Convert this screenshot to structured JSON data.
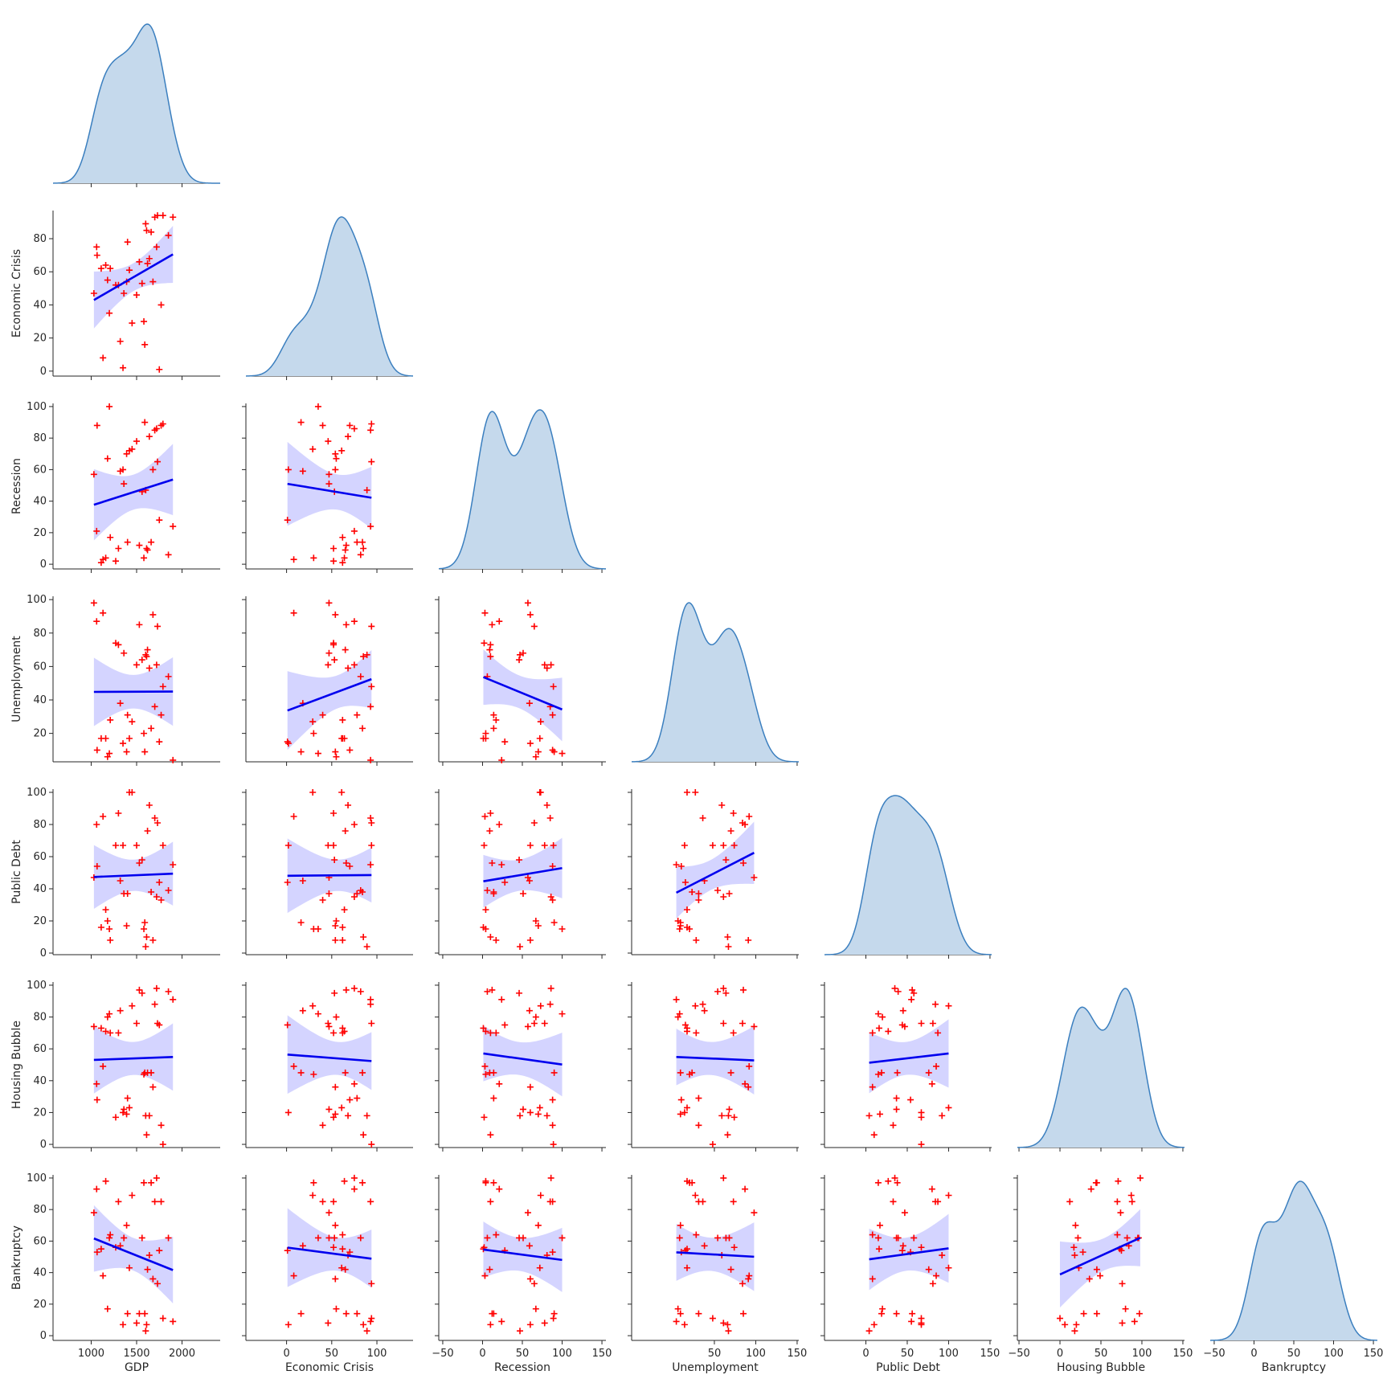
{
  "chart_data": {
    "type": "pairplot",
    "variables": [
      "GDP",
      "Economic Crisis",
      "Recession",
      "Unemployment",
      "Public Debt",
      "Housing Bubble",
      "Bankruptcy"
    ],
    "diag_kind": "kde",
    "lower_kind": "regression scatter with 95% confidence band",
    "corner": true,
    "colors": {
      "kde_fill": "#c5d9ec",
      "kde_line": "#3b7fbf",
      "points": "#ff0000",
      "reg_line": "#0000ee",
      "band": "#d4d4ff"
    },
    "axes": {
      "GDP": {
        "lim": [
          580,
          2420
        ],
        "ticks": [
          1000,
          1500,
          2000
        ]
      },
      "Economic Crisis": {
        "lim": [
          -3,
          97
        ],
        "ticks": [
          0,
          20,
          40,
          60,
          80
        ],
        "xlim": [
          -45,
          140
        ],
        "xticks": [
          0,
          50,
          100
        ]
      },
      "Recession": {
        "lim": [
          -3,
          102
        ],
        "ticks": [
          0,
          20,
          40,
          60,
          80,
          100
        ],
        "xlim": [
          -55,
          155
        ],
        "xticks": [
          -50,
          0,
          50,
          100,
          150
        ]
      },
      "Unemployment": {
        "lim": [
          3,
          102
        ],
        "ticks": [
          20,
          40,
          60,
          80,
          100
        ],
        "xlim": [
          -50,
          152
        ],
        "xticks": [
          50,
          100,
          150
        ]
      },
      "Public Debt": {
        "lim": [
          -1,
          102
        ],
        "ticks": [
          0,
          20,
          40,
          60,
          80,
          100
        ],
        "xlim": [
          -50,
          152
        ],
        "xticks": [
          0,
          50,
          100,
          150
        ]
      },
      "Housing Bubble": {
        "lim": [
          -2,
          102
        ],
        "ticks": [
          0,
          20,
          40,
          60,
          80,
          100
        ],
        "xlim": [
          -52,
          152
        ],
        "xticks": [
          -50,
          0,
          50,
          100,
          150
        ]
      },
      "Bankruptcy": {
        "lim": [
          -3,
          102
        ],
        "ticks": [
          0,
          20,
          40,
          60,
          80,
          100
        ],
        "xlim": [
          -55,
          155
        ],
        "xticks": [
          -50,
          0,
          50,
          100,
          150
        ]
      }
    },
    "records": [
      {
        "GDP": 1030,
        "Economic Crisis": 47,
        "Recession": 57,
        "Unemployment": 98,
        "Public Debt": 47,
        "Housing Bubble": 74,
        "Bankruptcy": 78
      },
      {
        "GDP": 1060,
        "Economic Crisis": 75,
        "Recession": 21,
        "Unemployment": 87,
        "Public Debt": 80,
        "Housing Bubble": 38,
        "Bankruptcy": 93
      },
      {
        "GDP": 1065,
        "Economic Crisis": 70,
        "Recession": 88,
        "Unemployment": 10,
        "Public Debt": 54,
        "Housing Bubble": 28,
        "Bankruptcy": 53
      },
      {
        "GDP": 1110,
        "Economic Crisis": 62,
        "Recession": 1,
        "Unemployment": 17,
        "Public Debt": 16,
        "Housing Bubble": 73,
        "Bankruptcy": 55
      },
      {
        "GDP": 1130,
        "Economic Crisis": 8,
        "Recession": 3,
        "Unemployment": 92,
        "Public Debt": 85,
        "Housing Bubble": 49,
        "Bankruptcy": 38
      },
      {
        "GDP": 1160,
        "Economic Crisis": 64,
        "Recession": 4,
        "Unemployment": 17,
        "Public Debt": 27,
        "Housing Bubble": 71,
        "Bankruptcy": 98
      },
      {
        "GDP": 1180,
        "Economic Crisis": 55,
        "Recession": 67,
        "Unemployment": 6,
        "Public Debt": 20,
        "Housing Bubble": 80,
        "Bankruptcy": 17
      },
      {
        "GDP": 1200,
        "Economic Crisis": 35,
        "Recession": 100,
        "Unemployment": 8,
        "Public Debt": 15,
        "Housing Bubble": 82,
        "Bankruptcy": 62
      },
      {
        "GDP": 1210,
        "Economic Crisis": 62,
        "Recession": 17,
        "Unemployment": 28,
        "Public Debt": 8,
        "Housing Bubble": 70,
        "Bankruptcy": 64
      },
      {
        "GDP": 1270,
        "Economic Crisis": 52,
        "Recession": 2,
        "Unemployment": 74,
        "Public Debt": 67,
        "Housing Bubble": 17,
        "Bankruptcy": 56
      },
      {
        "GDP": 1300,
        "Economic Crisis": 52,
        "Recession": 10,
        "Unemployment": 73,
        "Public Debt": 87,
        "Housing Bubble": 70,
        "Bankruptcy": 85
      },
      {
        "GDP": 1320,
        "Economic Crisis": 18,
        "Recession": 59,
        "Unemployment": 38,
        "Public Debt": 45,
        "Housing Bubble": 84,
        "Bankruptcy": 57
      },
      {
        "GDP": 1350,
        "Economic Crisis": 2,
        "Recession": 60,
        "Unemployment": 14,
        "Public Debt": 67,
        "Housing Bubble": 20,
        "Bankruptcy": 7
      },
      {
        "GDP": 1360,
        "Economic Crisis": 47,
        "Recession": 51,
        "Unemployment": 68,
        "Public Debt": 37,
        "Housing Bubble": 22,
        "Bankruptcy": 62
      },
      {
        "GDP": 1390,
        "Economic Crisis": 54,
        "Recession": 70,
        "Unemployment": 9,
        "Public Debt": 17,
        "Housing Bubble": 19,
        "Bankruptcy": 70
      },
      {
        "GDP": 1400,
        "Economic Crisis": 78,
        "Recession": 14,
        "Unemployment": 31,
        "Public Debt": 37,
        "Housing Bubble": 29,
        "Bankruptcy": 14
      },
      {
        "GDP": 1420,
        "Economic Crisis": 61,
        "Recession": 72,
        "Unemployment": 17,
        "Public Debt": 100,
        "Housing Bubble": 23,
        "Bankruptcy": 43
      },
      {
        "GDP": 1450,
        "Economic Crisis": 29,
        "Recession": 73,
        "Unemployment": 27,
        "Public Debt": 100,
        "Housing Bubble": 87,
        "Bankruptcy": 89
      },
      {
        "GDP": 1500,
        "Economic Crisis": 46,
        "Recession": 78,
        "Unemployment": 61,
        "Public Debt": 67,
        "Housing Bubble": 76,
        "Bankruptcy": 8
      },
      {
        "GDP": 1530,
        "Economic Crisis": 66,
        "Recession": 12,
        "Unemployment": 85,
        "Public Debt": 56,
        "Housing Bubble": 97,
        "Bankruptcy": 14
      },
      {
        "GDP": 1560,
        "Economic Crisis": 53,
        "Recession": 46,
        "Unemployment": 64,
        "Public Debt": 58,
        "Housing Bubble": 95,
        "Bankruptcy": 62
      },
      {
        "GDP": 1580,
        "Economic Crisis": 30,
        "Recession": 4,
        "Unemployment": 20,
        "Public Debt": 15,
        "Housing Bubble": 44,
        "Bankruptcy": 97
      },
      {
        "GDP": 1590,
        "Economic Crisis": 16,
        "Recession": 90,
        "Unemployment": 9,
        "Public Debt": 19,
        "Housing Bubble": 45,
        "Bankruptcy": 14
      },
      {
        "GDP": 1600,
        "Economic Crisis": 89,
        "Recession": 47,
        "Unemployment": 67,
        "Public Debt": 4,
        "Housing Bubble": 18,
        "Bankruptcy": 3
      },
      {
        "GDP": 1610,
        "Economic Crisis": 85,
        "Recession": 10,
        "Unemployment": 66,
        "Public Debt": 10,
        "Housing Bubble": 6,
        "Bankruptcy": 7
      },
      {
        "GDP": 1620,
        "Economic Crisis": 65,
        "Recession": 9,
        "Unemployment": 70,
        "Public Debt": 76,
        "Housing Bubble": 45,
        "Bankruptcy": 42
      },
      {
        "GDP": 1640,
        "Economic Crisis": 68,
        "Recession": 81,
        "Unemployment": 59,
        "Public Debt": 92,
        "Housing Bubble": 18,
        "Bankruptcy": 51
      },
      {
        "GDP": 1660,
        "Economic Crisis": 84,
        "Recession": 14,
        "Unemployment": 23,
        "Public Debt": 38,
        "Housing Bubble": 45,
        "Bankruptcy": 97
      },
      {
        "GDP": 1680,
        "Economic Crisis": 54,
        "Recession": 60,
        "Unemployment": 91,
        "Public Debt": 8,
        "Housing Bubble": 36,
        "Bankruptcy": 36
      },
      {
        "GDP": 1700,
        "Economic Crisis": 93,
        "Recession": 85,
        "Unemployment": 36,
        "Public Debt": 84,
        "Housing Bubble": 88,
        "Bankruptcy": 85
      },
      {
        "GDP": 1720,
        "Economic Crisis": 75,
        "Recession": 86,
        "Unemployment": 61,
        "Public Debt": 35,
        "Housing Bubble": 98,
        "Bankruptcy": 100
      },
      {
        "GDP": 1730,
        "Economic Crisis": 94,
        "Recession": 65,
        "Unemployment": 84,
        "Public Debt": 81,
        "Housing Bubble": 76,
        "Bankruptcy": 33
      },
      {
        "GDP": 1750,
        "Economic Crisis": 1,
        "Recession": 28,
        "Unemployment": 15,
        "Public Debt": 44,
        "Housing Bubble": 75,
        "Bankruptcy": 54
      },
      {
        "GDP": 1770,
        "Economic Crisis": 40,
        "Recession": 88,
        "Unemployment": 31,
        "Public Debt": 33,
        "Housing Bubble": 12,
        "Bankruptcy": 85
      },
      {
        "GDP": 1790,
        "Economic Crisis": 94,
        "Recession": 89,
        "Unemployment": 48,
        "Public Debt": 67,
        "Housing Bubble": 0,
        "Bankruptcy": 11
      },
      {
        "GDP": 1850,
        "Economic Crisis": 82,
        "Recession": 6,
        "Unemployment": 54,
        "Public Debt": 39,
        "Housing Bubble": 96,
        "Bankruptcy": 62
      },
      {
        "GDP": 1900,
        "Economic Crisis": 93,
        "Recession": 24,
        "Unemployment": 4,
        "Public Debt": 55,
        "Housing Bubble": 91,
        "Bankruptcy": 9
      }
    ]
  }
}
